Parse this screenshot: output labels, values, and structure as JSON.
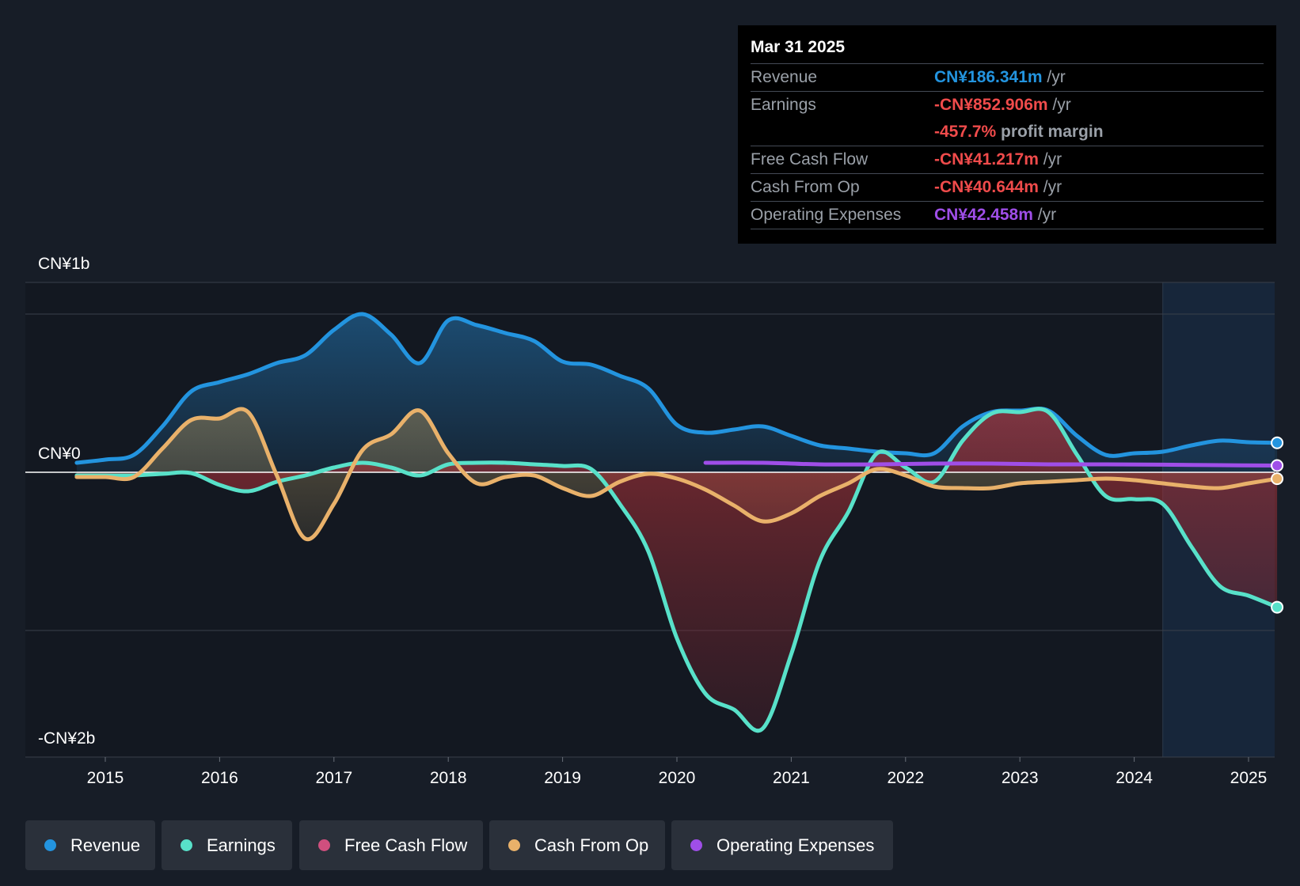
{
  "chart_data": {
    "type": "line",
    "y_labels": {
      "top": "CN¥1b",
      "zero": "CN¥0",
      "bottom": "-CN¥2b"
    },
    "ylim": [
      -1800,
      1200
    ],
    "xlim": [
      2014.3,
      2025.25
    ],
    "x_ticks": [
      "2015",
      "2016",
      "2017",
      "2018",
      "2019",
      "2020",
      "2021",
      "2022",
      "2023",
      "2024",
      "2025"
    ],
    "forecast_start": 2024.25,
    "series": [
      {
        "name": "Revenue",
        "color": "#2394df",
        "points": [
          [
            2014.75,
            60
          ],
          [
            2015.0,
            80
          ],
          [
            2015.25,
            110
          ],
          [
            2015.5,
            290
          ],
          [
            2015.75,
            510
          ],
          [
            2016.0,
            570
          ],
          [
            2016.25,
            620
          ],
          [
            2016.5,
            690
          ],
          [
            2016.75,
            740
          ],
          [
            2017.0,
            900
          ],
          [
            2017.25,
            1000
          ],
          [
            2017.5,
            870
          ],
          [
            2017.75,
            690
          ],
          [
            2018.0,
            960
          ],
          [
            2018.25,
            930
          ],
          [
            2018.5,
            880
          ],
          [
            2018.75,
            830
          ],
          [
            2019.0,
            700
          ],
          [
            2019.25,
            680
          ],
          [
            2019.5,
            610
          ],
          [
            2019.75,
            530
          ],
          [
            2020.0,
            300
          ],
          [
            2020.25,
            250
          ],
          [
            2020.5,
            270
          ],
          [
            2020.75,
            290
          ],
          [
            2021.0,
            230
          ],
          [
            2021.25,
            170
          ],
          [
            2021.5,
            150
          ],
          [
            2021.75,
            130
          ],
          [
            2022.0,
            120
          ],
          [
            2022.25,
            120
          ],
          [
            2022.5,
            290
          ],
          [
            2022.75,
            380
          ],
          [
            2023.0,
            390
          ],
          [
            2023.25,
            390
          ],
          [
            2023.5,
            230
          ],
          [
            2023.75,
            110
          ],
          [
            2024.0,
            120
          ],
          [
            2024.25,
            130
          ],
          [
            2024.5,
            170
          ],
          [
            2024.75,
            200
          ],
          [
            2025.0,
            190
          ],
          [
            2025.25,
            186.341
          ]
        ]
      },
      {
        "name": "Earnings",
        "color": "#58e1c9",
        "points": [
          [
            2014.75,
            -20
          ],
          [
            2015.0,
            -20
          ],
          [
            2015.25,
            -20
          ],
          [
            2015.5,
            -10
          ],
          [
            2015.75,
            -5
          ],
          [
            2016.0,
            -80
          ],
          [
            2016.25,
            -120
          ],
          [
            2016.5,
            -60
          ],
          [
            2016.75,
            -20
          ],
          [
            2017.0,
            30
          ],
          [
            2017.25,
            60
          ],
          [
            2017.5,
            30
          ],
          [
            2017.75,
            -20
          ],
          [
            2018.0,
            50
          ],
          [
            2018.25,
            60
          ],
          [
            2018.5,
            60
          ],
          [
            2018.75,
            50
          ],
          [
            2019.0,
            40
          ],
          [
            2019.25,
            20
          ],
          [
            2019.5,
            -200
          ],
          [
            2019.75,
            -500
          ],
          [
            2020.0,
            -1050
          ],
          [
            2020.25,
            -1400
          ],
          [
            2020.5,
            -1500
          ],
          [
            2020.75,
            -1620
          ],
          [
            2021.0,
            -1150
          ],
          [
            2021.25,
            -560
          ],
          [
            2021.5,
            -250
          ],
          [
            2021.75,
            120
          ],
          [
            2022.0,
            30
          ],
          [
            2022.25,
            -60
          ],
          [
            2022.5,
            200
          ],
          [
            2022.75,
            370
          ],
          [
            2023.0,
            380
          ],
          [
            2023.25,
            380
          ],
          [
            2023.5,
            110
          ],
          [
            2023.75,
            -150
          ],
          [
            2024.0,
            -170
          ],
          [
            2024.25,
            -200
          ],
          [
            2024.5,
            -470
          ],
          [
            2024.75,
            -720
          ],
          [
            2025.0,
            -780
          ],
          [
            2025.25,
            -852.906
          ]
        ]
      },
      {
        "name": "Free Cash Flow",
        "color": "#d04f7e",
        "points": []
      },
      {
        "name": "Cash From Op",
        "color": "#e9b16a",
        "points": [
          [
            2014.75,
            -30
          ],
          [
            2015.0,
            -30
          ],
          [
            2015.25,
            -30
          ],
          [
            2015.5,
            150
          ],
          [
            2015.75,
            330
          ],
          [
            2016.0,
            340
          ],
          [
            2016.25,
            380
          ],
          [
            2016.5,
            -20
          ],
          [
            2016.75,
            -420
          ],
          [
            2017.0,
            -200
          ],
          [
            2017.25,
            140
          ],
          [
            2017.5,
            240
          ],
          [
            2017.75,
            390
          ],
          [
            2018.0,
            120
          ],
          [
            2018.25,
            -70
          ],
          [
            2018.5,
            -30
          ],
          [
            2018.75,
            -20
          ],
          [
            2019.0,
            -100
          ],
          [
            2019.25,
            -150
          ],
          [
            2019.5,
            -60
          ],
          [
            2019.75,
            -10
          ],
          [
            2020.0,
            -40
          ],
          [
            2020.25,
            -110
          ],
          [
            2020.5,
            -210
          ],
          [
            2020.75,
            -310
          ],
          [
            2021.0,
            -260
          ],
          [
            2021.25,
            -150
          ],
          [
            2021.5,
            -70
          ],
          [
            2021.75,
            20
          ],
          [
            2022.0,
            -20
          ],
          [
            2022.25,
            -90
          ],
          [
            2022.5,
            -100
          ],
          [
            2022.75,
            -100
          ],
          [
            2023.0,
            -70
          ],
          [
            2023.25,
            -60
          ],
          [
            2023.5,
            -50
          ],
          [
            2023.75,
            -40
          ],
          [
            2024.0,
            -50
          ],
          [
            2024.25,
            -70
          ],
          [
            2024.5,
            -90
          ],
          [
            2024.75,
            -100
          ],
          [
            2025.0,
            -70
          ],
          [
            2025.25,
            -40.644
          ]
        ]
      },
      {
        "name": "Operating Expenses",
        "color": "#9f4ee8",
        "points": [
          [
            2020.25,
            60
          ],
          [
            2020.75,
            60
          ],
          [
            2021.25,
            50
          ],
          [
            2021.75,
            50
          ],
          [
            2022.25,
            55
          ],
          [
            2022.75,
            55
          ],
          [
            2023.25,
            50
          ],
          [
            2023.75,
            50
          ],
          [
            2024.25,
            48
          ],
          [
            2024.75,
            45
          ],
          [
            2025.25,
            42.458
          ]
        ]
      }
    ]
  },
  "tooltip": {
    "date": "Mar 31 2025",
    "rows": {
      "revenue": {
        "label": "Revenue",
        "value": "CN¥186.341m",
        "unit": " /yr",
        "color": "#2394df"
      },
      "earnings": {
        "label": "Earnings",
        "value": "-CN¥852.906m",
        "unit": " /yr",
        "color": "#f04b4b"
      },
      "margin": {
        "value": "-457.7%",
        "unit": " profit margin",
        "color": "#f04b4b"
      },
      "fcf": {
        "label": "Free Cash Flow",
        "value": "-CN¥41.217m",
        "unit": " /yr",
        "color": "#f04b4b"
      },
      "cfo": {
        "label": "Cash From Op",
        "value": "-CN¥40.644m",
        "unit": " /yr",
        "color": "#f04b4b"
      },
      "opex": {
        "label": "Operating Expenses",
        "value": "CN¥42.458m",
        "unit": " /yr",
        "color": "#9f4ee8"
      }
    }
  },
  "legend": {
    "revenue": "Revenue",
    "earnings": "Earnings",
    "fcf": "Free Cash Flow",
    "cfo": "Cash From Op",
    "opex": "Operating Expenses"
  }
}
